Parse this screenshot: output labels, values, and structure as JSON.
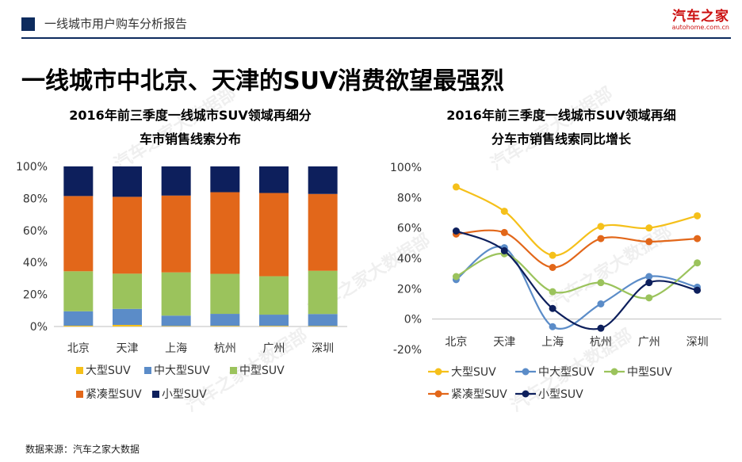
{
  "header": {
    "title": "一线城市用户购车分析报告"
  },
  "logo": {
    "name": "汽车之家",
    "url_text": "autohome.com.cn"
  },
  "headline": "一线城市中北京、天津的SUV消费欲望最强烈",
  "watermark": "汽车之家大数据部",
  "footer": "数据来源：汽车之家大数据",
  "colors": {
    "large": "#f5c01a",
    "midlarge": "#5b8cc8",
    "mid": "#9bc35c",
    "compact": "#e2671a",
    "small": "#0d1f5c",
    "navy": "#0d2b5e"
  },
  "chart_data": [
    {
      "type": "bar",
      "stacked": true,
      "title_lines": [
        "2016年前三季度一线城市SUV领域再细分",
        "车市销售线索分布"
      ],
      "categories": [
        "北京",
        "天津",
        "上海",
        "杭州",
        "广州",
        "深圳"
      ],
      "yticks": [
        "0%",
        "20%",
        "40%",
        "60%",
        "80%",
        "100%"
      ],
      "ylim": [
        0,
        100
      ],
      "series": [
        {
          "name": "大型SUV",
          "color": "#f5c01a",
          "values": [
            0.5,
            1.0,
            0.3,
            0.4,
            0.4,
            0.3
          ]
        },
        {
          "name": "中大型SUV",
          "color": "#5b8cc8",
          "values": [
            9,
            10,
            6.5,
            7.5,
            7,
            7.5
          ]
        },
        {
          "name": "中型SUV",
          "color": "#9bc35c",
          "values": [
            25,
            22,
            27,
            25,
            24,
            27
          ]
        },
        {
          "name": "紧凑型SUV",
          "color": "#e2671a",
          "values": [
            47,
            48,
            48,
            51,
            52,
            48
          ]
        },
        {
          "name": "小型SUV",
          "color": "#0d1f5c",
          "values": [
            18.5,
            19,
            18.2,
            16.1,
            16.6,
            17.2
          ]
        }
      ]
    },
    {
      "type": "line",
      "title_lines": [
        "2016年前三季度一线城市SUV领域再细",
        "分车市销售线索同比增长"
      ],
      "categories": [
        "北京",
        "天津",
        "上海",
        "杭州",
        "广州",
        "深圳"
      ],
      "yticks": [
        "-20%",
        "0%",
        "20%",
        "40%",
        "60%",
        "80%",
        "100%"
      ],
      "ylim": [
        -20,
        100
      ],
      "series": [
        {
          "name": "大型SUV",
          "color": "#f5c01a",
          "values": [
            87,
            71,
            42,
            61,
            60,
            68
          ]
        },
        {
          "name": "中大型SUV",
          "color": "#5b8cc8",
          "values": [
            26,
            47,
            -5,
            10,
            28,
            21
          ]
        },
        {
          "name": "中型SUV",
          "color": "#9bc35c",
          "values": [
            28,
            43,
            18,
            24,
            14,
            37
          ]
        },
        {
          "name": "紧凑型SUV",
          "color": "#e2671a",
          "values": [
            56,
            57,
            34,
            53,
            51,
            53
          ]
        },
        {
          "name": "小型SUV",
          "color": "#0d1f5c",
          "values": [
            58,
            45,
            7,
            -6,
            24,
            19
          ]
        }
      ]
    }
  ]
}
